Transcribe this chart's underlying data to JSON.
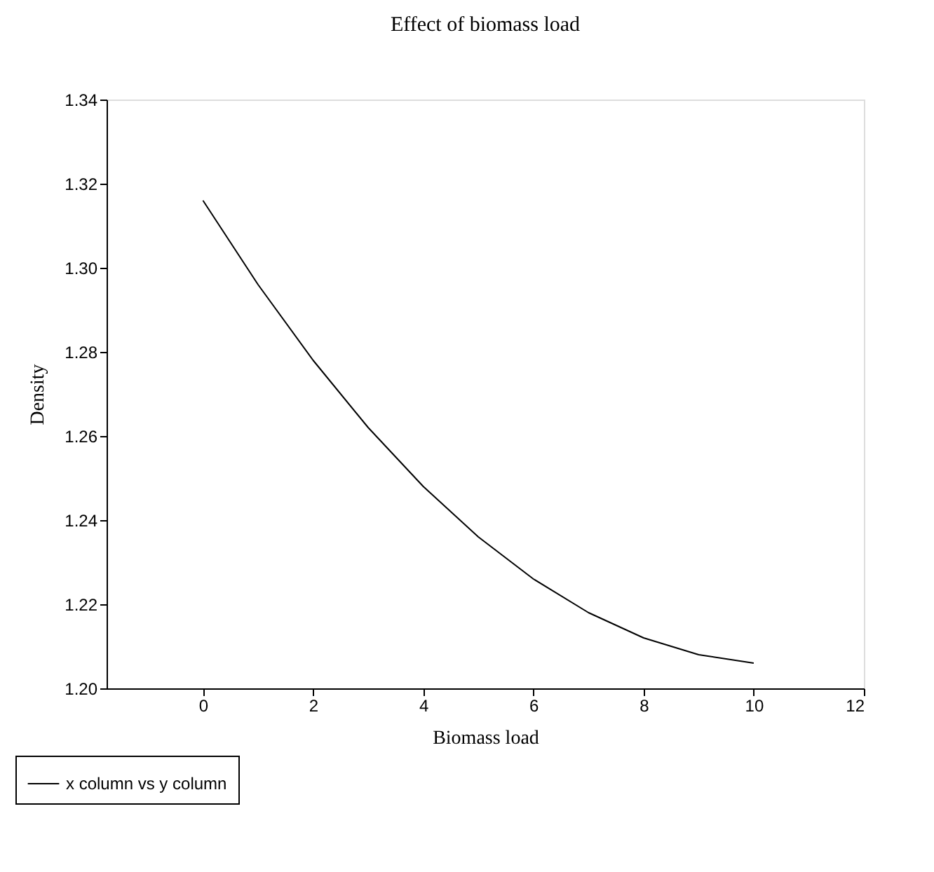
{
  "chart_data": {
    "type": "line",
    "title": "Effect of biomass load",
    "xlabel": "Biomass load",
    "ylabel": "Density",
    "x": [
      0,
      1,
      2,
      3,
      4,
      5,
      6,
      7,
      8,
      9,
      10
    ],
    "series": [
      {
        "name": "x column vs y column",
        "color": "#000000",
        "values": [
          1.316,
          1.296,
          1.278,
          1.262,
          1.248,
          1.236,
          1.226,
          1.218,
          1.212,
          1.208,
          1.206
        ]
      }
    ],
    "xlim": [
      -1.75,
      12
    ],
    "xticks": [
      0,
      2,
      4,
      6,
      8,
      10,
      12
    ],
    "ylim": [
      1.2,
      1.34
    ],
    "yticks": [
      {
        "value": 1.2,
        "label": "1.20"
      },
      {
        "value": 1.22,
        "label": "1.22"
      },
      {
        "value": 1.24,
        "label": "1.24"
      },
      {
        "value": 1.26,
        "label": "1.26"
      },
      {
        "value": 1.28,
        "label": "1.28"
      },
      {
        "value": 1.3,
        "label": "1.30"
      },
      {
        "value": 1.32,
        "label": "1.32"
      },
      {
        "value": 1.34,
        "label": "1.34"
      }
    ],
    "grid": false,
    "legend": "bottom left",
    "marker": "none",
    "line_style": "solid"
  }
}
